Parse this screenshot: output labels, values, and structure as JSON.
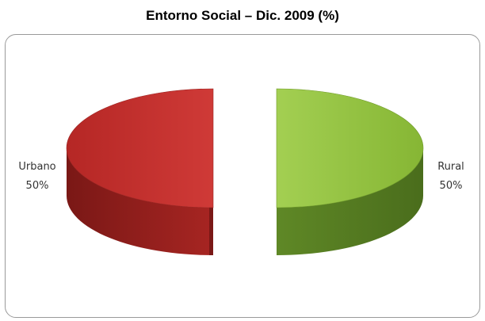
{
  "chart_data": {
    "type": "pie",
    "title": "Entorno Social – Dic. 2009 (%)",
    "slices": [
      {
        "label": "Urbano",
        "value": 50,
        "value_label": "50%",
        "color": "#c0302e",
        "side_color": "#8e1f1d"
      },
      {
        "label": "Rural",
        "value": 50,
        "value_label": "50%",
        "color": "#8fbf3a",
        "side_color": "#5f8424"
      }
    ],
    "style": "3d exploded"
  }
}
